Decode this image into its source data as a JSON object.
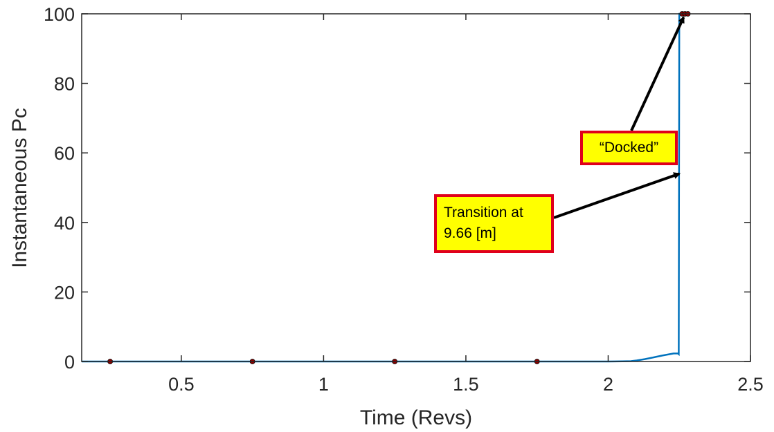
{
  "chart_data": {
    "type": "line",
    "title": "",
    "xlabel": "Time (Revs)",
    "ylabel": "Instantaneous Pc",
    "xlim": [
      0.15,
      2.5
    ],
    "ylim": [
      0,
      100
    ],
    "xticks": [
      0.5,
      1,
      1.5,
      2,
      2.5
    ],
    "xtick_labels": [
      "0.5",
      "1",
      "1.5",
      "2",
      "2.5"
    ],
    "yticks": [
      0,
      20,
      40,
      60,
      80,
      100
    ],
    "ytick_labels": [
      "0",
      "20",
      "40",
      "60",
      "80",
      "100"
    ],
    "grid": false,
    "series": [
      {
        "color": "#0072bd",
        "x": [
          0.15,
          2.0,
          2.05,
          2.08,
          2.1,
          2.13,
          2.16,
          2.19,
          2.21,
          2.23,
          2.245,
          2.248,
          2.25,
          2.27,
          2.28
        ],
        "y": [
          0,
          0,
          0.05,
          0.1,
          0.3,
          0.7,
          1.2,
          1.7,
          2.0,
          2.3,
          2.3,
          2.1,
          100,
          100,
          100
        ]
      }
    ],
    "markers": {
      "color": "#8b0000",
      "x": [
        0.25,
        0.75,
        1.25,
        1.75,
        2.26,
        2.27,
        2.28
      ],
      "y": [
        0,
        0,
        0,
        0,
        100,
        100,
        100
      ]
    },
    "annotations": [
      {
        "id": "docked",
        "lines": [
          "“Docked”"
        ],
        "arrow_to": [
          2.265,
          99
        ]
      },
      {
        "id": "transition",
        "lines": [
          "Transition at",
          "9.66 [m]"
        ],
        "arrow_to": [
          2.25,
          54
        ]
      }
    ]
  }
}
